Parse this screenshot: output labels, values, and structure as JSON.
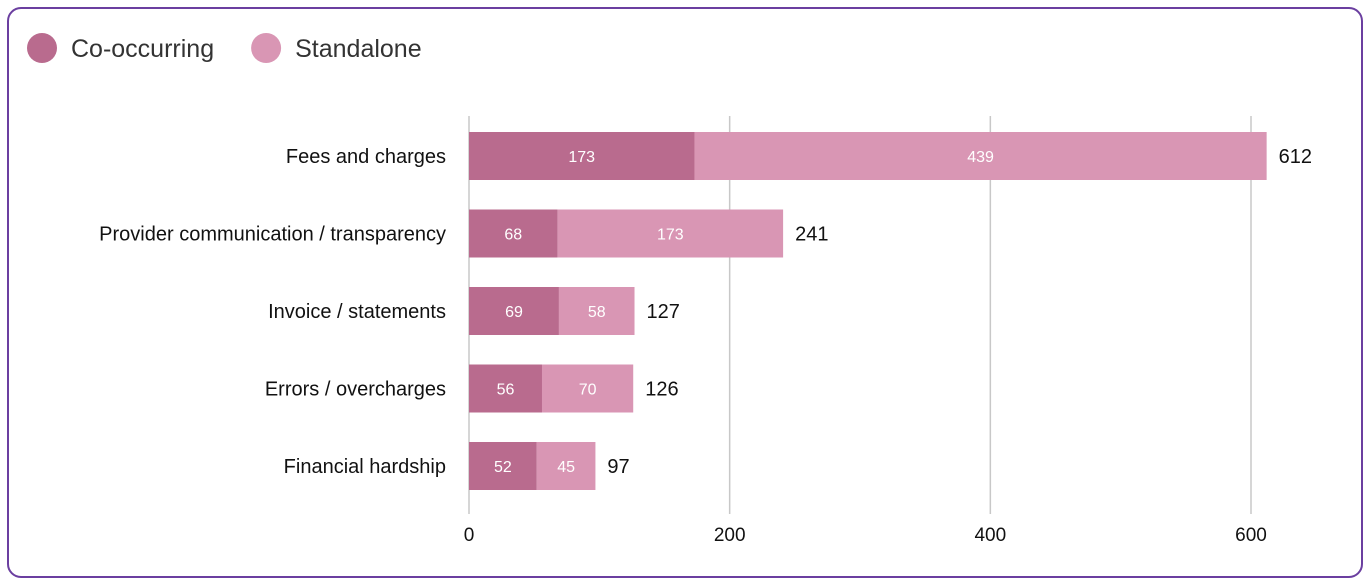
{
  "chart_data": {
    "type": "bar",
    "orientation": "horizontal",
    "stacked": true,
    "categories": [
      "Fees and charges",
      "Provider communication / transparency",
      "Invoice / statements",
      "Errors / overcharges",
      "Financial hardship"
    ],
    "series": [
      {
        "name": "Co-occurring",
        "color": "#b96b8e",
        "values": [
          173,
          68,
          69,
          56,
          52
        ]
      },
      {
        "name": "Standalone",
        "color": "#d996b4",
        "values": [
          439,
          173,
          58,
          70,
          45
        ]
      }
    ],
    "totals": [
      612,
      241,
      127,
      126,
      97
    ],
    "xlim": [
      0,
      600
    ],
    "xticks": [
      0,
      200,
      400,
      600
    ],
    "grid": true,
    "legend_position": "top-left"
  }
}
